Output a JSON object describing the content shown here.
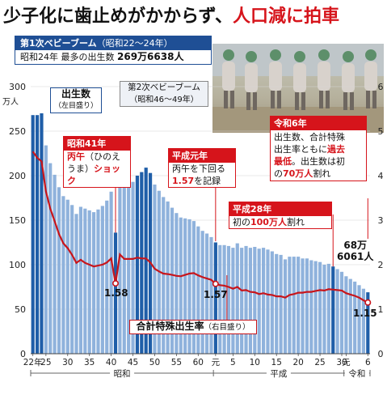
{
  "title": {
    "part1": "少子化に歯止めがかからず、",
    "part2": "人口減に拍車"
  },
  "chart_data": {
    "type": "bar+line",
    "x_tick_labels": [
      "22年",
      "25",
      "30",
      "35",
      "40",
      "45",
      "50",
      "55",
      "60",
      "元",
      "5",
      "10",
      "15",
      "20",
      "25",
      "30",
      "元",
      "6"
    ],
    "era_labels": [
      "昭和",
      "平成",
      "令和"
    ],
    "y_left_unit": "万人",
    "y_left_ticks": [
      0,
      50,
      100,
      150,
      200,
      250,
      300
    ],
    "y_left_lim": [
      0,
      300
    ],
    "y_right_ticks": [
      0,
      1,
      2,
      3,
      4,
      5,
      6
    ],
    "y_right_lim": [
      0,
      6
    ],
    "years": [
      1947,
      1948,
      1949,
      1950,
      1951,
      1952,
      1953,
      1954,
      1955,
      1956,
      1957,
      1958,
      1959,
      1960,
      1961,
      1962,
      1963,
      1964,
      1965,
      1966,
      1967,
      1968,
      1969,
      1970,
      1971,
      1972,
      1973,
      1974,
      1975,
      1976,
      1977,
      1978,
      1979,
      1980,
      1981,
      1982,
      1983,
      1984,
      1985,
      1986,
      1987,
      1988,
      1989,
      1990,
      1991,
      1992,
      1993,
      1994,
      1995,
      1996,
      1997,
      1998,
      1999,
      2000,
      2001,
      2002,
      2003,
      2004,
      2005,
      2006,
      2007,
      2008,
      2009,
      2010,
      2011,
      2012,
      2013,
      2014,
      2015,
      2016,
      2017,
      2018,
      2019,
      2020,
      2021,
      2022,
      2023,
      2024
    ],
    "births_10k": [
      268,
      268,
      270,
      234,
      214,
      201,
      187,
      177,
      173,
      167,
      157,
      165,
      163,
      161,
      159,
      162,
      166,
      172,
      182,
      136,
      194,
      187,
      189,
      193,
      200,
      204,
      209,
      203,
      190,
      183,
      176,
      171,
      164,
      158,
      153,
      152,
      151,
      149,
      143,
      138,
      135,
      131,
      125,
      122,
      122,
      121,
      119,
      124,
      119,
      121,
      119,
      120,
      118,
      119,
      117,
      115,
      112,
      111,
      106,
      109,
      109,
      109,
      107,
      107,
      105,
      104,
      103,
      100,
      101,
      98,
      95,
      92,
      87,
      84,
      81,
      77,
      73,
      69
    ],
    "tfr": [
      4.54,
      4.4,
      4.32,
      3.65,
      3.26,
      2.98,
      2.69,
      2.48,
      2.37,
      2.22,
      2.04,
      2.11,
      2.04,
      2.0,
      1.96,
      1.98,
      2.0,
      2.05,
      2.14,
      1.58,
      2.23,
      2.13,
      2.13,
      2.13,
      2.16,
      2.14,
      2.14,
      2.05,
      1.91,
      1.85,
      1.8,
      1.79,
      1.77,
      1.75,
      1.74,
      1.77,
      1.8,
      1.81,
      1.76,
      1.72,
      1.69,
      1.66,
      1.57,
      1.54,
      1.53,
      1.5,
      1.46,
      1.5,
      1.42,
      1.43,
      1.39,
      1.38,
      1.34,
      1.36,
      1.33,
      1.32,
      1.29,
      1.29,
      1.26,
      1.32,
      1.34,
      1.37,
      1.37,
      1.39,
      1.39,
      1.41,
      1.43,
      1.42,
      1.45,
      1.44,
      1.43,
      1.42,
      1.36,
      1.33,
      1.3,
      1.26,
      1.2,
      1.15
    ],
    "series": [
      {
        "name": "出生数"
      },
      {
        "name": "合計特殊出生率"
      }
    ],
    "annotations": {
      "rate_1966": "1.58",
      "rate_1989": "1.57",
      "rate_2024": "1.15",
      "births_2024_line1": "68万",
      "births_2024_line2": "6061人"
    }
  },
  "legend": {
    "births_label": "出生数",
    "births_sub": "（左目盛り）",
    "rate_label": "合計特殊出生率",
    "rate_sub": "（右目盛り）"
  },
  "boxes": {
    "boom1": {
      "head": "第1次ベビーブーム",
      "head_sub": "（昭和22～24年）",
      "line_a": "昭和24年 最多の出生数",
      "line_b": "269万6638人"
    },
    "boom2": {
      "line1": "第2次ベビーブーム",
      "line2": "（昭和46～49年）"
    },
    "s41": {
      "head": "昭和41年",
      "line1_red": "丙午",
      "line1_rest": "（ひのえ",
      "line2_rest": "うま）",
      "line2_red": "ショック"
    },
    "h1": {
      "head": "平成元年",
      "line1": "丙午を下回る",
      "line2_red": "1.57",
      "line2_rest": "を記録"
    },
    "r6": {
      "head": "令和6年",
      "line1": "出生数、合計特殊",
      "line2_a": "出生率ともに",
      "line2_red": "過去",
      "line3_red": "最低",
      "line3_rest": "。出生数は初",
      "line4_a": "の",
      "line4_red": "70万人",
      "line4_rest": "割れ"
    },
    "h28": {
      "head": "平成28年",
      "line1_a": "初の",
      "line1_red": "100万人",
      "line1_rest": "割れ"
    }
  },
  "colors": {
    "bar_main": "#8fb2dc",
    "bar_dark": "#1f5ea8",
    "rate_line": "#c8151b",
    "navy": "#1f4f95",
    "accent_red": "#d6141b"
  }
}
